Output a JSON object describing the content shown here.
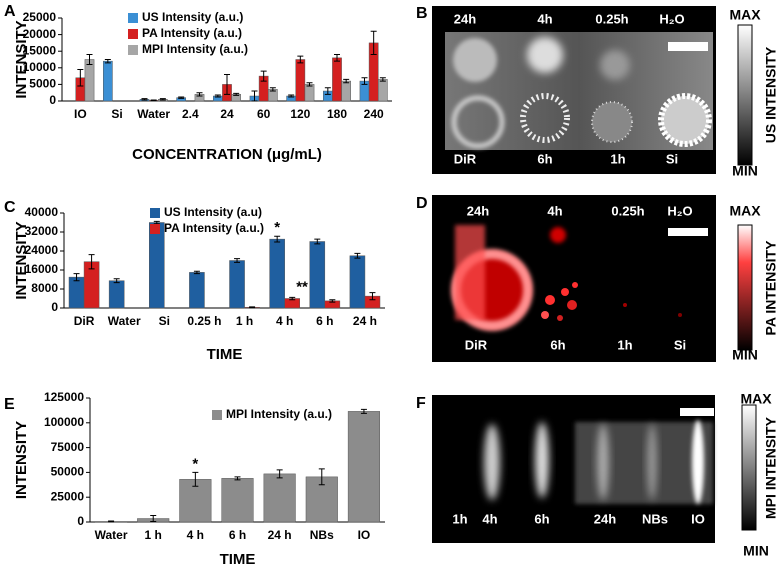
{
  "chart_data": [
    {
      "type": "bar",
      "panel": "A",
      "ylabel": "INTENSITY",
      "xlabel": "CONCENTRATION (μg/mL)",
      "categories": [
        "IO",
        "Si",
        "Water",
        "2.4",
        "24",
        "60",
        "120",
        "180",
        "240"
      ],
      "series": [
        {
          "name": "US Intensity (a.u.)",
          "color": "#3b8fd4",
          "values": [
            null,
            12000,
            500,
            1000,
            1500,
            1500,
            1500,
            3000,
            6000
          ],
          "errors": [
            null,
            500,
            200,
            200,
            300,
            1500,
            300,
            1000,
            1000
          ]
        },
        {
          "name": "PA Intensity (a.u.)",
          "color": "#d42020",
          "values": [
            7000,
            null,
            200,
            0,
            5000,
            7500,
            12500,
            13000,
            17500
          ],
          "errors": [
            2500,
            null,
            100,
            0,
            3000,
            1500,
            1000,
            1000,
            3500
          ]
        },
        {
          "name": "MPI Intensity (a.u.)",
          "color": "#a6a6a6",
          "values": [
            12500,
            null,
            500,
            2000,
            2000,
            3500,
            5000,
            6000,
            6500
          ],
          "errors": [
            1500,
            null,
            200,
            500,
            300,
            500,
            500,
            500,
            500
          ]
        }
      ],
      "ylim": [
        0,
        25000
      ],
      "yticks": [
        0,
        5000,
        10000,
        15000,
        20000,
        25000
      ]
    },
    {
      "type": "bar",
      "panel": "C",
      "ylabel": "INTENSITY",
      "xlabel": "TIME",
      "categories": [
        "DiR",
        "Water",
        "Si",
        "0.25 h",
        "1 h",
        "4 h",
        "6 h",
        "24 h"
      ],
      "series": [
        {
          "name": "US Intensity (a.u)",
          "color": "#1f5fa0",
          "values": [
            13000,
            11500,
            36000,
            15000,
            20000,
            29000,
            28000,
            22000
          ],
          "errors": [
            1500,
            800,
            500,
            500,
            800,
            1200,
            1000,
            1000
          ]
        },
        {
          "name": "PA Intensity (a.u.)",
          "color": "#d42020",
          "values": [
            19500,
            null,
            null,
            null,
            300,
            4000,
            3000,
            5000
          ],
          "errors": [
            3000,
            null,
            null,
            null,
            200,
            500,
            500,
            1500
          ]
        }
      ],
      "annotations": [
        "*",
        "**"
      ],
      "ylim": [
        0,
        40000
      ],
      "yticks": [
        0,
        8000,
        16000,
        24000,
        32000,
        40000
      ]
    },
    {
      "type": "bar",
      "panel": "E",
      "ylabel": "INTENSITY",
      "xlabel": "TIME",
      "categories": [
        "Water",
        "1 h",
        "4 h",
        "6 h",
        "24 h",
        "NBs",
        "IO"
      ],
      "series": [
        {
          "name": "MPI Intensity (a.u.)",
          "color": "#8c8c8c",
          "values": [
            500,
            3500,
            43000,
            44000,
            48500,
            45500,
            111500
          ],
          "errors": [
            500,
            3000,
            7000,
            1500,
            4000,
            8000,
            2000
          ]
        }
      ],
      "annotations": [
        "*"
      ],
      "ylim": [
        0,
        125000
      ],
      "yticks": [
        0,
        25000,
        50000,
        75000,
        100000,
        125000
      ]
    }
  ],
  "images": [
    {
      "panel": "B",
      "labels": [
        "24h",
        "4h",
        "0.25h",
        "H₂O",
        "DiR",
        "6h",
        "1h",
        "Si"
      ],
      "colorbar": {
        "max": "MAX",
        "min": "MIN",
        "label": "US INTENSITY"
      }
    },
    {
      "panel": "D",
      "labels": [
        "24h",
        "4h",
        "0.25h",
        "H₂O",
        "DiR",
        "6h",
        "1h",
        "Si"
      ],
      "colorbar": {
        "max": "MAX",
        "min": "MIN",
        "label": "PA INTENSITY"
      }
    },
    {
      "panel": "F",
      "labels": [
        "1h",
        "4h",
        "6h",
        "24h",
        "NBs",
        "IO"
      ],
      "colorbar": {
        "max": "MAX",
        "min": "MIN",
        "label": "MPI INTENSITY"
      }
    }
  ]
}
